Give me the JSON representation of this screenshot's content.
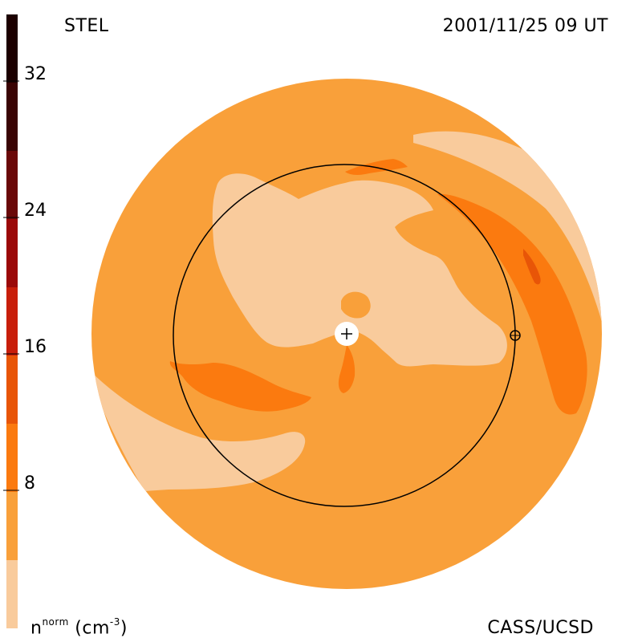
{
  "header": {
    "instrument": "STEL",
    "timestamp": "2001/11/25 09 UT"
  },
  "footer": {
    "credit": "CASS/UCSD",
    "unit_prefix": "n",
    "unit_sup": "norm",
    "unit_suffix": " (cm",
    "unit_exp": "-3",
    "unit_close": ")"
  },
  "colorbar": {
    "ticks": [
      "32",
      "24",
      "16",
      "8"
    ],
    "levels": [
      "#f9cb9c",
      "#f9a03a",
      "#fb7a0f",
      "#e85507",
      "#c81e0a",
      "#9b0909",
      "#6a0808",
      "#3a0404",
      "#1c0000"
    ]
  },
  "map": {
    "sun_marker": "+",
    "earth_marker": "⊕",
    "colors": {
      "background": "#f9a03a",
      "low": "#f9cb9c",
      "mid": "#fb7a0f",
      "high": "#e85507",
      "orbit": "#000000"
    }
  }
}
